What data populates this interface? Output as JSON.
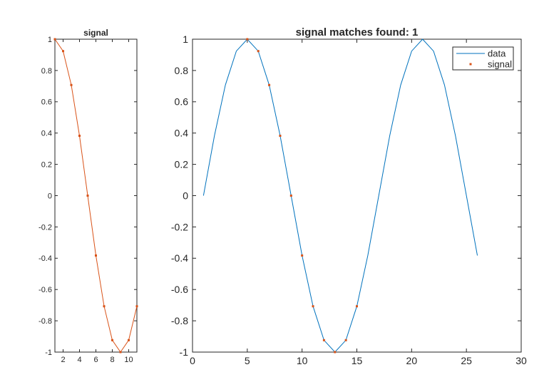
{
  "chart_data": [
    {
      "type": "line",
      "title": "signal",
      "xlim": [
        1,
        11
      ],
      "ylim": [
        -1,
        1
      ],
      "xticks": [
        2,
        4,
        6,
        8,
        10
      ],
      "yticks": [
        -1,
        -0.8,
        -0.6,
        -0.4,
        -0.2,
        0,
        0.2,
        0.4,
        0.6,
        0.8,
        1
      ],
      "series": [
        {
          "x": [
            1,
            2,
            3,
            4,
            5,
            6,
            7,
            8,
            9,
            10,
            11
          ],
          "y": [
            1,
            0.9239,
            0.7071,
            0.3827,
            0,
            -0.3827,
            -0.7071,
            -0.9239,
            -1,
            -0.9239,
            -0.7071
          ],
          "color": "#D95319",
          "marker": "point"
        }
      ]
    },
    {
      "type": "line",
      "title": "signal matches found: 1",
      "xlim": [
        0,
        30
      ],
      "ylim": [
        -1,
        1
      ],
      "xticks": [
        0,
        5,
        10,
        15,
        20,
        25,
        30
      ],
      "yticks": [
        -1,
        -0.8,
        -0.6,
        -0.4,
        -0.2,
        0,
        0.2,
        0.4,
        0.6,
        0.8,
        1
      ],
      "legend": {
        "placement": "top-right",
        "entries": [
          "data",
          "signal"
        ]
      },
      "series": [
        {
          "name": "data",
          "color": "#0072BD",
          "x": [
            1,
            2,
            3,
            4,
            5,
            6,
            7,
            8,
            9,
            10,
            11,
            12,
            13,
            14,
            15,
            16,
            17,
            18,
            19,
            20,
            21,
            22,
            23,
            24,
            25,
            26
          ],
          "y": [
            0,
            0.3827,
            0.7071,
            0.9239,
            1,
            0.9239,
            0.7071,
            0.3827,
            0,
            -0.3827,
            -0.7071,
            -0.9239,
            -1,
            -0.9239,
            -0.7071,
            -0.3827,
            0,
            0.3827,
            0.7071,
            0.9239,
            1,
            0.9239,
            0.7071,
            0.3827,
            0,
            -0.3827
          ]
        },
        {
          "name": "signal",
          "color": "#D95319",
          "marker": "point",
          "line": false,
          "x": [
            5,
            6,
            7,
            8,
            9,
            10,
            11,
            12,
            13,
            14,
            15
          ],
          "y": [
            1,
            0.9239,
            0.7071,
            0.3827,
            0,
            -0.3827,
            -0.7071,
            -0.9239,
            -1,
            -0.9239,
            -0.7071
          ]
        }
      ]
    }
  ]
}
